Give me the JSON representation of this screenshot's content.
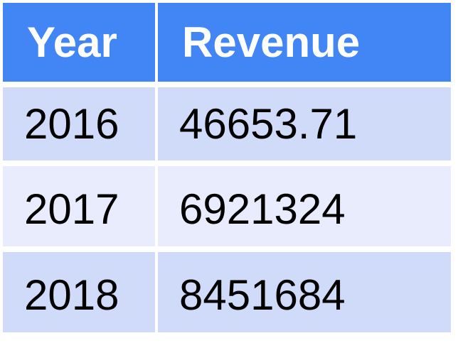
{
  "table": {
    "header_color": "#4285f4",
    "row_color_dark": "#d0daf9",
    "row_color_light": "#e8ecfc",
    "columns": [
      "Year",
      "Revenue"
    ],
    "rows": [
      [
        "2016",
        "46653.71"
      ],
      [
        "2017",
        "6921324"
      ],
      [
        "2018",
        "8451684"
      ]
    ]
  }
}
